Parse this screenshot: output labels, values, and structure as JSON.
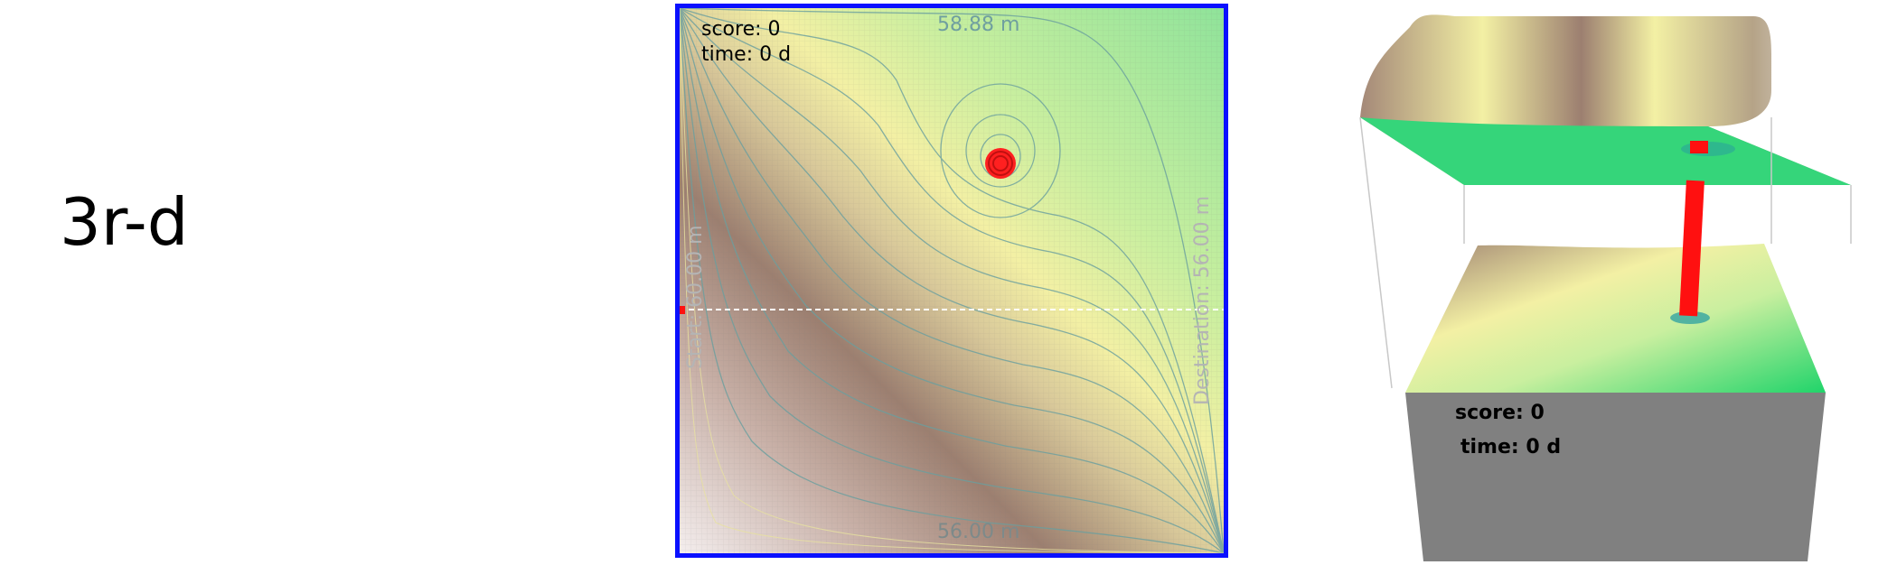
{
  "mode_label": "3r-d",
  "hud2d": {
    "score": "score: 0",
    "time": "time: 0 d"
  },
  "hud3d": {
    "score": "score: 0",
    "time": "time: 0 d"
  },
  "contour_labels": {
    "top": "58.88 m",
    "bottom": "56.00 m",
    "start": "Start:  60.00 m",
    "destination": "Destination:  56.00 m"
  },
  "colors": {
    "frame": "#0a10ff",
    "obstacle": "#ff1010",
    "lowland": "#8fe39a",
    "midland": "#f3f0a4",
    "highland": "#9c7f70",
    "base": "#808080"
  },
  "obstacle_icon": "red-cylinder"
}
